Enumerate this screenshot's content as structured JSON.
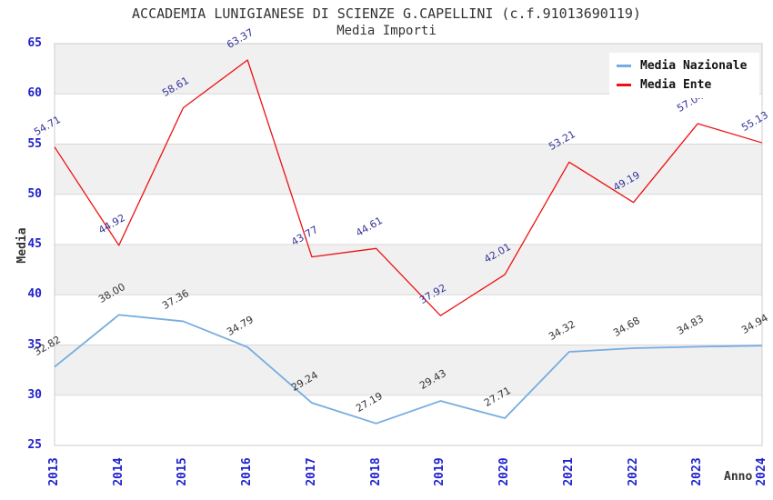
{
  "title": "ACCADEMIA LUNIGIANESE DI SCIENZE G.CAPELLINI (c.f.91013690119)",
  "subtitle": "Media Importi",
  "chart_data": {
    "type": "line",
    "x": [
      "2013",
      "2014",
      "2015",
      "2016",
      "2017",
      "2018",
      "2019",
      "2020",
      "2021",
      "2022",
      "2023",
      "2024"
    ],
    "series": [
      {
        "name": "Media Nazionale",
        "line_color": "#77ace0",
        "label_color": "#333333",
        "values": [
          32.82,
          38.0,
          37.36,
          34.79,
          29.24,
          27.19,
          29.43,
          27.71,
          34.32,
          34.68,
          34.83,
          34.94
        ]
      },
      {
        "name": "Media Ente",
        "line_color": "#ee1111",
        "label_color": "#333399",
        "values": [
          54.71,
          44.92,
          58.61,
          63.37,
          43.77,
          44.61,
          37.92,
          42.01,
          53.21,
          49.19,
          57.04,
          55.13
        ]
      }
    ],
    "xlabel": "Anno",
    "ylabel": "Media",
    "ylim": [
      25,
      65
    ],
    "ytick_step": 5,
    "yticks": [
      65,
      60,
      55,
      50,
      45,
      40,
      35,
      30,
      25
    ],
    "grid": "horizontal-bands",
    "band_colors": [
      "#f0f0f0",
      "#ffffff"
    ],
    "gridline_color": "#d9d9d9",
    "plot_border_color": "#cccccc",
    "tick_label_color": "#2222cc",
    "legend_position": "top-right"
  }
}
